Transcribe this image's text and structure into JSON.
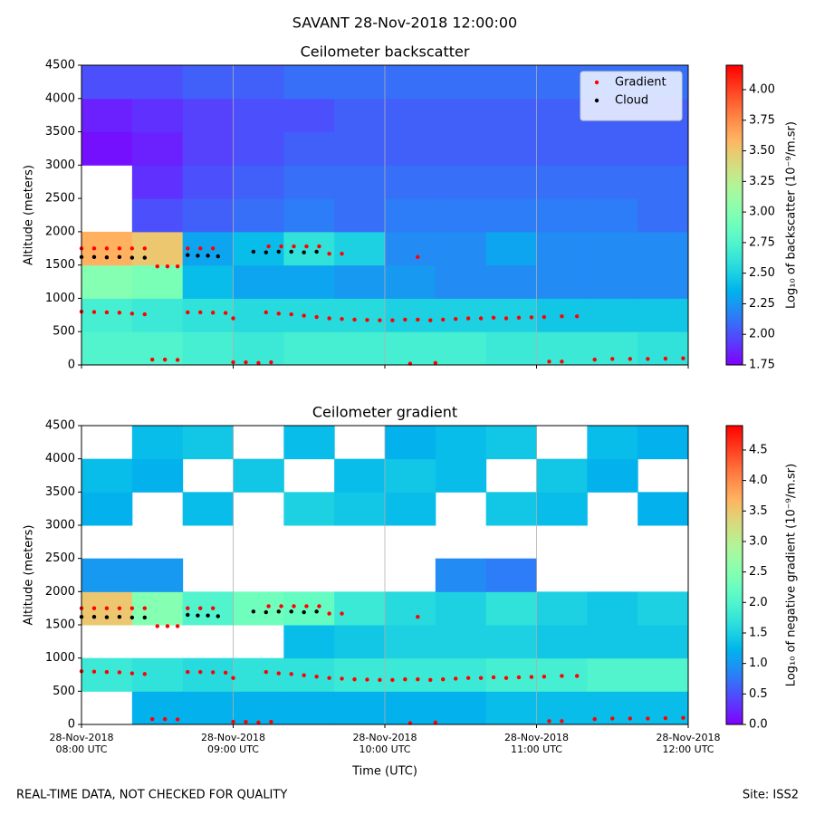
{
  "title": "SAVANT 28-Nov-2018 12:00:00",
  "footer_left": "REAL-TIME DATA, NOT CHECKED FOR QUALITY",
  "footer_right": "Site: ISS2",
  "chart_data": [
    {
      "type": "heatmap",
      "title": "Ceilometer backscatter",
      "y_label": "Altitude (meters)",
      "colormap": "rainbow",
      "colorbar_label": "Log₁₀ of backscatter (10⁻⁹/m.sr)",
      "zlim": [
        1.75,
        4.2
      ],
      "zticks": [
        1.75,
        {
          "value": 2,
          "label": "2.00"
        },
        2.25,
        {
          "value": 2.5,
          "label": "2.50"
        },
        2.75,
        {
          "value": 3,
          "label": "3.00"
        },
        3.25,
        {
          "value": 3.5,
          "label": "3.50"
        },
        3.75,
        {
          "value": 4,
          "label": "4.00"
        }
      ],
      "xlim": [
        480,
        720
      ],
      "xticks": [
        480,
        540,
        600,
        660,
        720
      ],
      "ylim": [
        0,
        4500
      ],
      "yticks": [
        0,
        500,
        1000,
        1500,
        2000,
        2500,
        3000,
        3500,
        4000,
        4500
      ],
      "grid": "x",
      "legend": "upper right",
      "x_edges": [
        480,
        500,
        520,
        540,
        560,
        580,
        600,
        620,
        640,
        660,
        680,
        700,
        720
      ],
      "y_edges": [
        0,
        500,
        1000,
        1500,
        2000,
        2500,
        3000,
        3500,
        4000,
        4500
      ],
      "z": [
        [
          2.75,
          2.75,
          2.7,
          2.65,
          2.7,
          2.7,
          2.7,
          2.7,
          2.65,
          2.65,
          2.65,
          2.6
        ],
        [
          2.7,
          2.65,
          2.6,
          2.55,
          2.55,
          2.55,
          2.5,
          2.5,
          2.5,
          2.45,
          2.45,
          2.45
        ],
        [
          3.0,
          2.95,
          2.4,
          2.3,
          2.3,
          2.25,
          2.25,
          2.2,
          2.2,
          2.2,
          2.2,
          2.2
        ],
        [
          3.6,
          3.5,
          2.3,
          2.4,
          2.6,
          2.5,
          2.2,
          2.2,
          2.3,
          2.2,
          2.2,
          2.2
        ],
        [
          null,
          2.0,
          2.05,
          2.1,
          2.15,
          2.1,
          2.15,
          2.15,
          2.15,
          2.15,
          2.15,
          2.1
        ],
        [
          null,
          1.9,
          2.0,
          2.05,
          2.1,
          2.1,
          2.1,
          2.1,
          2.1,
          2.1,
          2.1,
          2.1
        ],
        [
          1.8,
          1.85,
          1.95,
          2.0,
          2.05,
          2.05,
          2.05,
          2.05,
          2.05,
          2.05,
          2.05,
          2.05
        ],
        [
          1.85,
          1.9,
          1.95,
          2.0,
          2.0,
          2.05,
          2.05,
          2.05,
          2.05,
          2.05,
          2.05,
          2.05
        ],
        [
          2.0,
          2.0,
          2.05,
          2.05,
          2.1,
          2.1,
          2.1,
          2.1,
          2.1,
          2.1,
          2.1,
          2.1
        ]
      ],
      "series": [
        {
          "name": "Gradient",
          "color": "#ff0000",
          "x": [
            480,
            485,
            490,
            495,
            500,
            505,
            510,
            514,
            518,
            522,
            527,
            532,
            554,
            559,
            564,
            569,
            574,
            578,
            583,
            613,
            480,
            485,
            490,
            495,
            500,
            505,
            522,
            527,
            532,
            537,
            540,
            553,
            558,
            563,
            568,
            573,
            578,
            583,
            588,
            593,
            598,
            603,
            608,
            613,
            618,
            623,
            628,
            633,
            638,
            643,
            648,
            653,
            658,
            663,
            670,
            676,
            508,
            513,
            518,
            540,
            545,
            550,
            555,
            610,
            620,
            665,
            670,
            683,
            690,
            697,
            704,
            711,
            718
          ],
          "values": [
            1750,
            1750,
            1750,
            1750,
            1750,
            1750,
            1480,
            1480,
            1480,
            1750,
            1750,
            1750,
            1780,
            1780,
            1780,
            1780,
            1780,
            1670,
            1670,
            1620,
            800,
            795,
            790,
            785,
            770,
            760,
            790,
            790,
            785,
            780,
            700,
            790,
            770,
            760,
            740,
            720,
            700,
            690,
            680,
            675,
            670,
            670,
            680,
            680,
            670,
            680,
            690,
            700,
            700,
            710,
            700,
            710,
            715,
            720,
            730,
            730,
            80,
            80,
            75,
            40,
            40,
            30,
            40,
            20,
            30,
            50,
            50,
            80,
            90,
            90,
            90,
            95,
            100
          ]
        },
        {
          "name": "Cloud",
          "color": "#000000",
          "x": [
            480,
            485,
            490,
            495,
            500,
            505,
            522,
            526,
            530,
            534,
            548,
            553,
            558,
            563,
            568,
            573
          ],
          "values": [
            1620,
            1620,
            1615,
            1620,
            1610,
            1610,
            1650,
            1640,
            1640,
            1630,
            1700,
            1690,
            1700,
            1700,
            1690,
            1700
          ]
        }
      ]
    },
    {
      "type": "heatmap",
      "title": "Ceilometer gradient",
      "y_label": "Altitude (meters)",
      "x_label": "Time (UTC)",
      "colormap": "rainbow",
      "colorbar_label": "Log₁₀ of negative gradient (10⁻⁹/m.sr)",
      "zlim": [
        0,
        4.9
      ],
      "zticks": [
        {
          "value": 0,
          "label": "0.0"
        },
        0.5,
        {
          "value": 1,
          "label": "1.0"
        },
        1.5,
        {
          "value": 2,
          "label": "2.0"
        },
        2.5,
        {
          "value": 3,
          "label": "3.0"
        },
        3.5,
        {
          "value": 4,
          "label": "4.0"
        },
        4.5
      ],
      "xlim": [
        480,
        720
      ],
      "xticks": [
        {
          "value": 480,
          "label": "28-Nov-2018 08:00 UTC"
        },
        {
          "value": 540,
          "label": "28-Nov-2018 09:00 UTC"
        },
        {
          "value": 600,
          "label": "28-Nov-2018 10:00 UTC"
        },
        {
          "value": 660,
          "label": "28-Nov-2018 11:00 UTC"
        },
        {
          "value": 720,
          "label": "28-Nov-2018 12:00 UTC"
        }
      ],
      "ylim": [
        0,
        4500
      ],
      "yticks": [
        0,
        500,
        1000,
        1500,
        2000,
        2500,
        3000,
        3500,
        4000,
        4500
      ],
      "grid": "x",
      "x_edges": [
        480,
        500,
        520,
        540,
        560,
        580,
        600,
        620,
        640,
        660,
        680,
        700,
        720
      ],
      "y_edges": [
        0,
        500,
        1000,
        1500,
        2000,
        2500,
        3000,
        3500,
        4000,
        4500
      ],
      "z": [
        [
          null,
          1.2,
          1.2,
          1.2,
          1.2,
          1.2,
          1.2,
          1.2,
          1.3,
          1.3,
          1.3,
          1.3
        ],
        [
          1.8,
          1.7,
          1.6,
          1.7,
          1.7,
          1.8,
          1.8,
          1.8,
          1.9,
          1.9,
          2.0,
          2.0
        ],
        [
          null,
          null,
          null,
          null,
          1.3,
          1.4,
          1.5,
          1.5,
          1.5,
          1.4,
          1.4,
          1.4
        ],
        [
          3.5,
          2.5,
          2.0,
          2.3,
          2.2,
          1.8,
          1.6,
          1.5,
          1.7,
          1.5,
          1.4,
          1.5
        ],
        [
          1.0,
          1.0,
          null,
          null,
          null,
          null,
          null,
          0.9,
          0.8,
          null,
          null,
          null
        ],
        [
          null,
          null,
          null,
          null,
          null,
          null,
          null,
          null,
          null,
          null,
          null,
          null
        ],
        [
          1.2,
          null,
          1.3,
          null,
          1.5,
          1.4,
          1.3,
          null,
          1.4,
          1.3,
          null,
          1.2
        ],
        [
          1.3,
          1.2,
          null,
          1.4,
          null,
          1.3,
          1.4,
          1.3,
          null,
          1.4,
          1.2,
          null
        ],
        [
          null,
          1.3,
          1.4,
          null,
          1.3,
          null,
          1.2,
          1.3,
          1.4,
          null,
          1.3,
          1.2
        ]
      ],
      "series": [
        {
          "color": "#ff0000",
          "x": [
            480,
            485,
            490,
            495,
            500,
            505,
            510,
            514,
            518,
            522,
            527,
            532,
            554,
            559,
            564,
            569,
            574,
            578,
            583,
            613,
            480,
            485,
            490,
            495,
            500,
            505,
            522,
            527,
            532,
            537,
            540,
            553,
            558,
            563,
            568,
            573,
            578,
            583,
            588,
            593,
            598,
            603,
            608,
            613,
            618,
            623,
            628,
            633,
            638,
            643,
            648,
            653,
            658,
            663,
            670,
            676,
            508,
            513,
            518,
            540,
            545,
            550,
            555,
            610,
            620,
            665,
            670,
            683,
            690,
            697,
            704,
            711,
            718
          ],
          "values": [
            1750,
            1750,
            1750,
            1750,
            1750,
            1750,
            1480,
            1480,
            1480,
            1750,
            1750,
            1750,
            1780,
            1780,
            1780,
            1780,
            1780,
            1670,
            1670,
            1620,
            800,
            795,
            790,
            785,
            770,
            760,
            790,
            790,
            785,
            780,
            700,
            790,
            770,
            760,
            740,
            720,
            700,
            690,
            680,
            675,
            670,
            670,
            680,
            680,
            670,
            680,
            690,
            700,
            700,
            710,
            700,
            710,
            715,
            720,
            730,
            730,
            80,
            80,
            75,
            40,
            40,
            30,
            40,
            20,
            30,
            50,
            50,
            80,
            90,
            90,
            90,
            95,
            100
          ]
        },
        {
          "color": "#000000",
          "x": [
            480,
            485,
            490,
            495,
            500,
            505,
            522,
            526,
            530,
            534,
            548,
            553,
            558,
            563,
            568,
            573
          ],
          "values": [
            1620,
            1620,
            1615,
            1620,
            1610,
            1610,
            1650,
            1640,
            1640,
            1630,
            1700,
            1690,
            1700,
            1700,
            1690,
            1700
          ]
        }
      ]
    }
  ]
}
